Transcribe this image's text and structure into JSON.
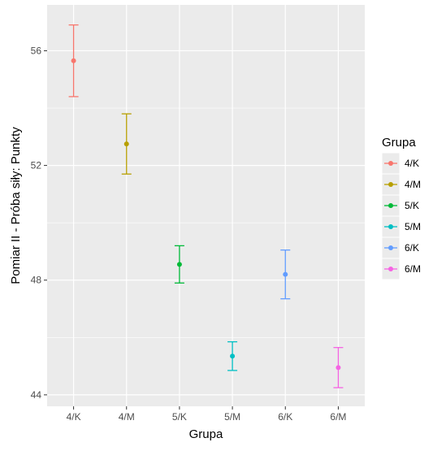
{
  "chart_data": {
    "type": "errorbar",
    "xlabel": "Grupa",
    "ylabel": "Pomiar II - Próba siły: Punkty",
    "categories": [
      "4/K",
      "4/M",
      "5/K",
      "5/M",
      "6/K",
      "6/M"
    ],
    "points": [
      {
        "group": "4/K",
        "mean": 55.65,
        "low": 54.4,
        "high": 56.9
      },
      {
        "group": "4/M",
        "mean": 52.75,
        "low": 51.7,
        "high": 53.8
      },
      {
        "group": "5/K",
        "mean": 48.55,
        "low": 47.9,
        "high": 49.2
      },
      {
        "group": "5/M",
        "mean": 45.35,
        "low": 44.85,
        "high": 45.85
      },
      {
        "group": "6/K",
        "mean": 48.2,
        "low": 47.35,
        "high": 49.05
      },
      {
        "group": "6/M",
        "mean": 44.95,
        "low": 44.25,
        "high": 45.65
      }
    ],
    "yticks": [
      44,
      48,
      52,
      56
    ],
    "ylim": [
      43.6,
      57.6
    ],
    "grid": true,
    "legend": {
      "title": "Grupa",
      "position": "right",
      "entries": [
        "4/K",
        "4/M",
        "5/K",
        "5/M",
        "6/K",
        "6/M"
      ]
    },
    "colors": {
      "4/K": "#F8766D",
      "4/M": "#B79F00",
      "5/K": "#00BA38",
      "5/M": "#00BFC4",
      "6/K": "#619CFF",
      "6/M": "#F564E3"
    },
    "panel_background": "#EBEBEB",
    "grid_color": "#FFFFFF"
  }
}
